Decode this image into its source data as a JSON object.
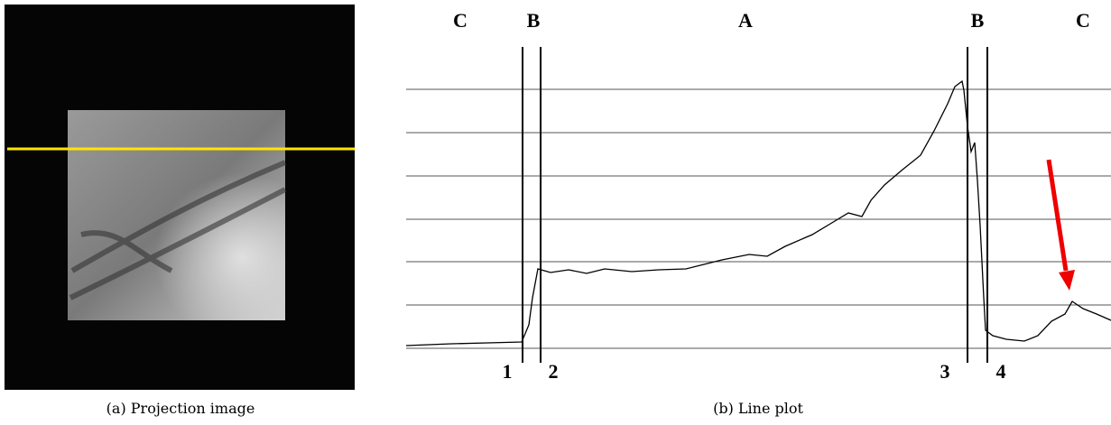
{
  "panels": [
    {
      "caption": "(a) Projection image"
    },
    {
      "caption": "(b) Line plot",
      "region_labels": [
        "C",
        "B",
        "A",
        "B",
        "C"
      ],
      "boundary_labels": [
        "1",
        "2",
        "3",
        "4"
      ]
    }
  ]
}
